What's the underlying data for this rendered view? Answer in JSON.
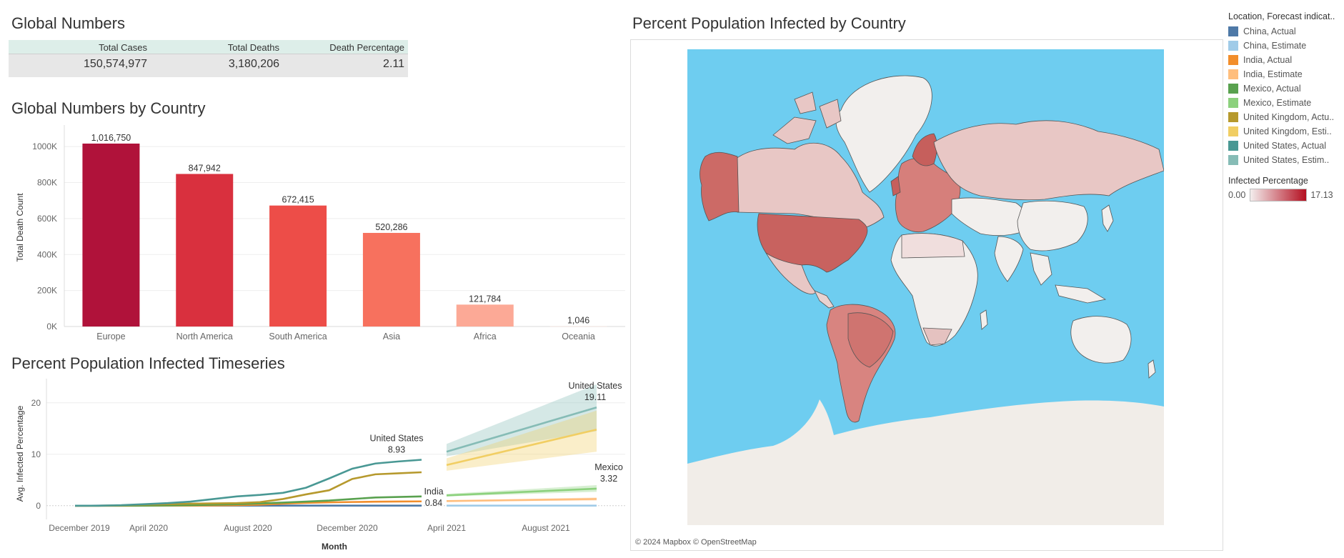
{
  "global_numbers": {
    "title": "Global Numbers",
    "headers": [
      "Total Cases",
      "Total Deaths",
      "Death Percentage"
    ],
    "values": [
      "150,574,977",
      "3,180,206",
      "2.11"
    ]
  },
  "bar_section": {
    "title": "Global Numbers by Country"
  },
  "ts_section": {
    "title": "Percent Population Infected Timeseries"
  },
  "map_section": {
    "title": "Percent Population Infected by Country",
    "attribution": "© 2024 Mapbox © OpenStreetMap"
  },
  "legend": {
    "title": "Location, Forecast indicat..",
    "items": [
      {
        "label": "China, Actual",
        "color": "#4e79a7"
      },
      {
        "label": "China, Estimate",
        "color": "#a0cbe8"
      },
      {
        "label": "India, Actual",
        "color": "#f28e2b"
      },
      {
        "label": "India, Estimate",
        "color": "#ffbe7d"
      },
      {
        "label": "Mexico, Actual",
        "color": "#59a14f"
      },
      {
        "label": "Mexico, Estimate",
        "color": "#8cd17d"
      },
      {
        "label": "United Kingdom, Actu..",
        "color": "#b6992d"
      },
      {
        "label": "United Kingdom, Esti..",
        "color": "#f1ce63"
      },
      {
        "label": "United States, Actual",
        "color": "#499894"
      },
      {
        "label": "United States, Estim..",
        "color": "#86bcb6"
      }
    ],
    "gradient_title": "Infected Percentage",
    "gradient_min": "0.00",
    "gradient_max": "17.13",
    "gradient_colors": [
      "#f3eded",
      "#b40f20"
    ]
  },
  "chart_data": [
    {
      "type": "bar",
      "title": "Global Numbers by Country",
      "xlabel": "",
      "ylabel": "Total Death Count",
      "categories": [
        "Europe",
        "North America",
        "South America",
        "Asia",
        "Africa",
        "Oceania"
      ],
      "values": [
        1016750,
        847942,
        672415,
        520286,
        121784,
        1046
      ],
      "data_labels": [
        "1,016,750",
        "847,942",
        "672,415",
        "520,286",
        "121,784",
        "1,046"
      ],
      "colors": [
        "#b0123a",
        "#d9303e",
        "#ed4d48",
        "#f7715e",
        "#fca996",
        "#fde4dc"
      ],
      "yticks": [
        "0K",
        "200K",
        "400K",
        "600K",
        "800K",
        "1000K"
      ],
      "ylim": [
        0,
        1100000
      ],
      "grid": true
    },
    {
      "type": "line",
      "title": "Percent Population Infected Timeseries",
      "xlabel": "Month",
      "ylabel": "Avg. Infected Percentage",
      "ylim": [
        -1,
        24
      ],
      "yticks": [
        0,
        10,
        20
      ],
      "xticks": [
        "December 2019",
        "April 2020",
        "August 2020",
        "December 2020",
        "April 2021",
        "August 2021"
      ],
      "actual_months": [
        "2020-01",
        "2020-02",
        "2020-03",
        "2020-04",
        "2020-05",
        "2020-06",
        "2020-07",
        "2020-08",
        "2020-09",
        "2020-10",
        "2020-11",
        "2020-12",
        "2021-01",
        "2021-02",
        "2021-03",
        "2021-04"
      ],
      "forecast_months": [
        "2021-04",
        "2021-10"
      ],
      "series": [
        {
          "name": "United States",
          "color": "#499894",
          "estimate_color": "#86bcb6",
          "actual": [
            0.0,
            0.0,
            0.1,
            0.3,
            0.5,
            0.8,
            1.3,
            1.8,
            2.1,
            2.5,
            3.5,
            5.3,
            7.2,
            8.2,
            8.6,
            8.93
          ],
          "estimate": [
            10.5,
            19.11
          ],
          "band_low": [
            9.6,
            14.5
          ],
          "band_high": [
            12.0,
            23.6
          ]
        },
        {
          "name": "United Kingdom",
          "color": "#b6992d",
          "estimate_color": "#f1ce63",
          "actual": [
            0.0,
            0.0,
            0.05,
            0.2,
            0.3,
            0.4,
            0.45,
            0.5,
            0.7,
            1.3,
            2.2,
            3.0,
            5.2,
            6.1,
            6.3,
            6.5
          ],
          "estimate": [
            7.9,
            14.8
          ],
          "band_low": [
            6.8,
            10.5
          ],
          "band_high": [
            9.2,
            18.5
          ]
        },
        {
          "name": "Mexico",
          "color": "#59a14f",
          "estimate_color": "#8cd17d",
          "actual": [
            0.0,
            0.0,
            0.0,
            0.02,
            0.05,
            0.1,
            0.2,
            0.3,
            0.45,
            0.6,
            0.8,
            1.0,
            1.3,
            1.6,
            1.7,
            1.8
          ],
          "estimate": [
            2.0,
            3.32
          ],
          "band_low": [
            1.8,
            2.7
          ],
          "band_high": [
            2.3,
            4.0
          ]
        },
        {
          "name": "India",
          "color": "#f28e2b",
          "estimate_color": "#ffbe7d",
          "actual": [
            0.0,
            0.0,
            0.0,
            0.0,
            0.01,
            0.02,
            0.05,
            0.1,
            0.2,
            0.4,
            0.55,
            0.65,
            0.72,
            0.78,
            0.82,
            0.84
          ],
          "estimate": [
            0.9,
            1.3
          ],
          "band_low": [
            0.8,
            1.0
          ],
          "band_high": [
            1.0,
            1.6
          ]
        },
        {
          "name": "China",
          "color": "#4e79a7",
          "estimate_color": "#a0cbe8",
          "actual": [
            0.0,
            0.01,
            0.01,
            0.01,
            0.01,
            0.01,
            0.01,
            0.01,
            0.01,
            0.01,
            0.01,
            0.01,
            0.01,
            0.01,
            0.01,
            0.01
          ],
          "estimate": [
            0.01,
            0.01
          ],
          "band_low": [
            0.0,
            0.0
          ],
          "band_high": [
            0.02,
            0.02
          ]
        }
      ],
      "annotations": [
        {
          "series": "United States",
          "label": "United States",
          "value": "8.93",
          "at": "actual_end"
        },
        {
          "series": "United States",
          "label": "United States",
          "value": "19.11",
          "at": "estimate_end"
        },
        {
          "series": "Mexico",
          "label": "Mexico",
          "value": "3.32",
          "at": "estimate_end"
        },
        {
          "series": "India",
          "label": "India",
          "value": "0.84",
          "at": "actual_end"
        }
      ]
    }
  ]
}
